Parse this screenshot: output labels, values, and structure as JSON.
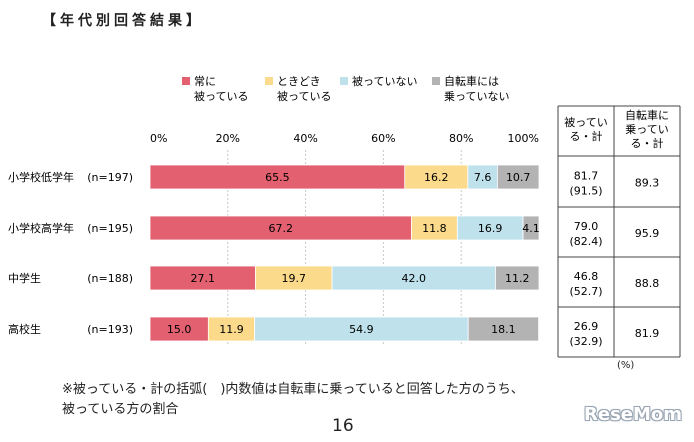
{
  "page_title": "【年代別回答結果】",
  "chart_data": {
    "type": "bar",
    "stacked": true,
    "orientation": "horizontal",
    "x_ticks": [
      "0%",
      "20%",
      "40%",
      "60%",
      "80%",
      "100%"
    ],
    "xlim": [
      0,
      100
    ],
    "categories": [
      {
        "label": "小学校低学年",
        "n": "(n=197)"
      },
      {
        "label": "小学校高学年",
        "n": "(n=195)"
      },
      {
        "label": "中学生",
        "n": "(n=188)"
      },
      {
        "label": "高校生",
        "n": "(n=193)"
      }
    ],
    "series": [
      {
        "name": "常に被っている",
        "legend_lines": [
          "常に",
          "被っている"
        ],
        "color": "#e2606f",
        "values": [
          65.5,
          67.2,
          27.1,
          15.0
        ]
      },
      {
        "name": "ときどき被っている",
        "legend_lines": [
          "ときどき",
          "被っている"
        ],
        "color": "#fbdb8b",
        "values": [
          16.2,
          11.8,
          19.7,
          11.9
        ]
      },
      {
        "name": "被っていない",
        "legend_lines": [
          "被っていない"
        ],
        "color": "#bfe1ec",
        "values": [
          7.6,
          16.9,
          42.0,
          54.9
        ]
      },
      {
        "name": "自転車には乗っていない",
        "legend_lines": [
          "自転車には",
          "乗っていない"
        ],
        "color": "#b3b3b3",
        "values": [
          10.7,
          4.1,
          11.2,
          18.1
        ]
      }
    ]
  },
  "table": {
    "headers": [
      [
        "被ってい",
        "る・計"
      ],
      [
        "自転車に",
        "乗ってい",
        "る・計"
      ]
    ],
    "rows": [
      {
        "total": "81.7",
        "sub": "(91.5)",
        "ride": "89.3"
      },
      {
        "total": "79.0",
        "sub": "(82.4)",
        "ride": "95.9"
      },
      {
        "total": "46.8",
        "sub": "(52.7)",
        "ride": "88.8"
      },
      {
        "total": "26.9",
        "sub": "(32.9)",
        "ride": "81.9"
      }
    ],
    "unit": "(%)"
  },
  "note": {
    "line1": "※被っている・計の括弧(　)内数値は自転車に乗っていると回答した方のうち、",
    "line2": "被っている方の割合"
  },
  "page_number": "16",
  "logo_text": "ReseMom"
}
